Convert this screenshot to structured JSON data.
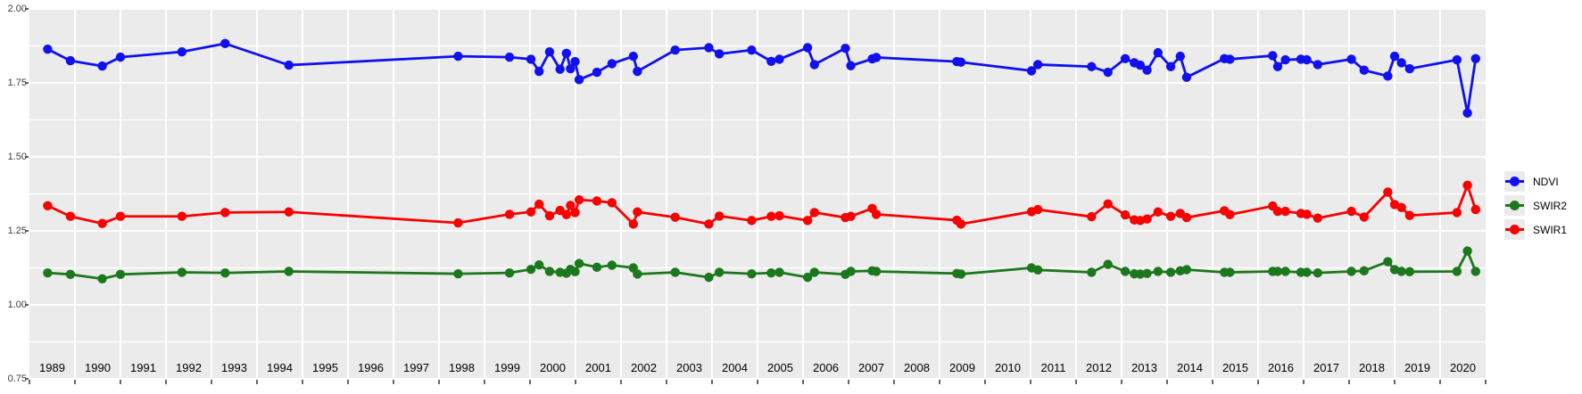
{
  "chart_data": {
    "type": "line",
    "title": "",
    "x_axis": {
      "tick_labels": [
        "1989",
        "1990",
        "1991",
        "1992",
        "1993",
        "1994",
        "1995",
        "1996",
        "1997",
        "1998",
        "1999",
        "2000",
        "2001",
        "2002",
        "2003",
        "2004",
        "2005",
        "2006",
        "2007",
        "2008",
        "2009",
        "2010",
        "2011",
        "2012",
        "2013",
        "2014",
        "2015",
        "2016",
        "2017",
        "2018",
        "2019",
        "2020"
      ],
      "range_years": [
        1989,
        2021
      ]
    },
    "y_axis": {
      "tick_labels": [
        "2.00",
        "1.75",
        "1.50",
        "1.25",
        "1.00",
        "0.75"
      ],
      "tick_values": [
        2.0,
        1.75,
        1.5,
        1.25,
        1.0,
        0.75
      ],
      "range": [
        0.75,
        2.0
      ],
      "major_step": 0.25,
      "minor_step": 0.125
    },
    "grid": {
      "panel_bg": "#EBEBEB",
      "grid_color": "#FFFFFF",
      "axis_text_color": "#3C3C3C",
      "tick_color": "#333333"
    },
    "legend": {
      "position": "right",
      "entries": [
        {
          "label": "NDVI",
          "color": "#1010F0"
        },
        {
          "label": "SWIR2",
          "color": "#1C781C"
        },
        {
          "label": "SWIR1",
          "color": "#FA0000"
        }
      ]
    },
    "x": [
      1989.4,
      1989.9,
      1990.6,
      1991.0,
      1992.35,
      1993.3,
      1994.7,
      1998.42,
      1999.55,
      2000.02,
      2000.2,
      2000.43,
      2000.66,
      2000.8,
      2000.89,
      2000.99,
      2001.08,
      2001.47,
      2001.8,
      2002.27,
      2002.36,
      2003.19,
      2003.93,
      2004.16,
      2004.87,
      2005.3,
      2005.48,
      2006.1,
      2006.25,
      2006.93,
      2007.05,
      2007.52,
      2007.61,
      2009.38,
      2009.47,
      2011.02,
      2011.16,
      2012.34,
      2012.7,
      2013.08,
      2013.28,
      2013.41,
      2013.56,
      2013.8,
      2014.08,
      2014.29,
      2014.43,
      2015.26,
      2015.38,
      2016.32,
      2016.43,
      2016.6,
      2016.94,
      2017.07,
      2017.31,
      2018.05,
      2018.33,
      2018.85,
      2019.0,
      2019.15,
      2019.33,
      2020.37,
      2020.6,
      2020.78
    ],
    "series": [
      {
        "name": "NDVI",
        "color": "#1010F0",
        "values": [
          1.864,
          1.825,
          1.807,
          1.837,
          1.855,
          1.883,
          1.81,
          1.84,
          1.837,
          1.83,
          1.789,
          1.855,
          1.796,
          1.85,
          1.798,
          1.822,
          1.761,
          1.786,
          1.815,
          1.84,
          1.789,
          1.861,
          1.869,
          1.848,
          1.861,
          1.823,
          1.83,
          1.869,
          1.812,
          1.867,
          1.808,
          1.831,
          1.836,
          1.822,
          1.82,
          1.791,
          1.812,
          1.805,
          1.786,
          1.832,
          1.818,
          1.81,
          1.793,
          1.852,
          1.805,
          1.84,
          1.769,
          1.832,
          1.83,
          1.842,
          1.805,
          1.828,
          1.83,
          1.828,
          1.812,
          1.83,
          1.793,
          1.773,
          1.84,
          1.818,
          1.798,
          1.828,
          1.648,
          1.832
        ]
      },
      {
        "name": "SWIR2",
        "color": "#1C781C",
        "values": [
          1.108,
          1.103,
          1.088,
          1.103,
          1.11,
          1.108,
          1.113,
          1.105,
          1.108,
          1.12,
          1.135,
          1.113,
          1.11,
          1.107,
          1.12,
          1.112,
          1.14,
          1.127,
          1.134,
          1.125,
          1.104,
          1.11,
          1.093,
          1.11,
          1.105,
          1.108,
          1.11,
          1.093,
          1.11,
          1.103,
          1.113,
          1.115,
          1.113,
          1.106,
          1.104,
          1.125,
          1.118,
          1.11,
          1.137,
          1.113,
          1.105,
          1.104,
          1.106,
          1.113,
          1.11,
          1.115,
          1.119,
          1.11,
          1.11,
          1.113,
          1.113,
          1.113,
          1.11,
          1.11,
          1.108,
          1.113,
          1.115,
          1.146,
          1.119,
          1.113,
          1.112,
          1.113,
          1.182,
          1.113
        ]
      },
      {
        "name": "SWIR1",
        "color": "#FA0000",
        "values": [
          1.335,
          1.299,
          1.275,
          1.299,
          1.299,
          1.312,
          1.314,
          1.277,
          1.306,
          1.314,
          1.34,
          1.301,
          1.319,
          1.305,
          1.336,
          1.312,
          1.355,
          1.351,
          1.345,
          1.273,
          1.314,
          1.296,
          1.273,
          1.3,
          1.285,
          1.299,
          1.301,
          1.285,
          1.312,
          1.295,
          1.299,
          1.326,
          1.306,
          1.286,
          1.273,
          1.315,
          1.322,
          1.298,
          1.341,
          1.304,
          1.287,
          1.285,
          1.29,
          1.314,
          1.299,
          1.309,
          1.295,
          1.318,
          1.305,
          1.334,
          1.316,
          1.316,
          1.309,
          1.306,
          1.293,
          1.316,
          1.297,
          1.381,
          1.339,
          1.329,
          1.302,
          1.312,
          1.404,
          1.322
        ]
      }
    ]
  }
}
